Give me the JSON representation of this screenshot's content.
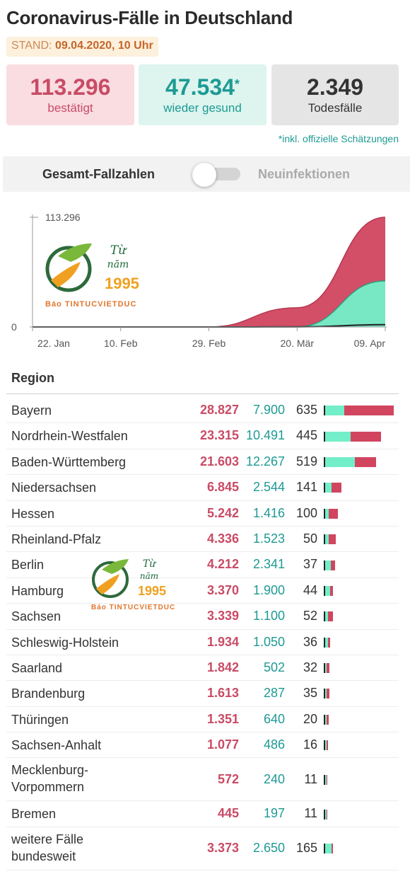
{
  "header": {
    "title": "Coronavirus-Fälle in Deutschland",
    "stand_label": "STAND:",
    "stand_value": "09.04.2020, 10 Uhr"
  },
  "stats": {
    "confirmed": {
      "value": "113.296",
      "label": "bestätigt"
    },
    "recovered": {
      "value": "47.534",
      "marker": "*",
      "label": "wieder gesund"
    },
    "deaths": {
      "value": "2.349",
      "label": "Todesfälle"
    },
    "footnote": "*inkl. offizielle Schätzungen"
  },
  "toggle": {
    "left_label": "Gesamt-Fallzahlen",
    "right_label": "Neuinfektionen",
    "state": "left"
  },
  "watermark": {
    "line1": "Từ",
    "line2": "năm",
    "year": "1995",
    "text": "Báo TINTUCVIETDUC"
  },
  "chart_data": [
    {
      "type": "area",
      "x": [
        "22. Jan",
        "10. Feb",
        "29. Feb",
        "20. Mär",
        "09. Apr"
      ],
      "y_tick_labels": [
        "0",
        "113.296"
      ],
      "ylim": [
        0,
        113296
      ],
      "series": [
        {
          "values": [
            0,
            16,
            79,
            19848,
            113296
          ],
          "color": "#d1455f"
        },
        {
          "values": [
            0,
            0,
            16,
            180,
            47534
          ],
          "color": "#72efc9"
        },
        {
          "values": [
            0,
            0,
            0,
            68,
            2349
          ],
          "color": "#222222"
        }
      ],
      "grid": false,
      "legend": "none"
    },
    {
      "type": "table",
      "columns": [
        "Region",
        "",
        "",
        "",
        ""
      ],
      "colors": {
        "confirmed": "#d1455f",
        "recovered": "#72efc9",
        "deaths": "#222222"
      },
      "max_confirmed": 28827,
      "rows": [
        {
          "region": "Bayern",
          "confirmed": "28.827",
          "recovered": "7.900",
          "deaths": "635",
          "c": 28827,
          "r": 7900,
          "d": 635
        },
        {
          "region": "Nordrhein-Westfalen",
          "confirmed": "23.315",
          "recovered": "10.491",
          "deaths": "445",
          "c": 23315,
          "r": 10491,
          "d": 445
        },
        {
          "region": "Baden-Württemberg",
          "confirmed": "21.603",
          "recovered": "12.267",
          "deaths": "519",
          "c": 21603,
          "r": 12267,
          "d": 519
        },
        {
          "region": "Niedersachsen",
          "confirmed": "6.845",
          "recovered": "2.544",
          "deaths": "141",
          "c": 6845,
          "r": 2544,
          "d": 141
        },
        {
          "region": "Hessen",
          "confirmed": "5.242",
          "recovered": "1.416",
          "deaths": "100",
          "c": 5242,
          "r": 1416,
          "d": 100
        },
        {
          "region": "Rheinland-Pfalz",
          "confirmed": "4.336",
          "recovered": "1.523",
          "deaths": "50",
          "c": 4336,
          "r": 1523,
          "d": 50
        },
        {
          "region": "Berlin",
          "confirmed": "4.212",
          "recovered": "2.341",
          "deaths": "37",
          "c": 4212,
          "r": 2341,
          "d": 37
        },
        {
          "region": "Hamburg",
          "confirmed": "3.370",
          "recovered": "1.900",
          "deaths": "44",
          "c": 3370,
          "r": 1900,
          "d": 44
        },
        {
          "region": "Sachsen",
          "confirmed": "3.339",
          "recovered": "1.100",
          "deaths": "52",
          "c": 3339,
          "r": 1100,
          "d": 52
        },
        {
          "region": "Schleswig-Holstein",
          "confirmed": "1.934",
          "recovered": "1.050",
          "deaths": "36",
          "c": 1934,
          "r": 1050,
          "d": 36
        },
        {
          "region": "Saarland",
          "confirmed": "1.842",
          "recovered": "502",
          "deaths": "32",
          "c": 1842,
          "r": 502,
          "d": 32
        },
        {
          "region": "Brandenburg",
          "confirmed": "1.613",
          "recovered": "287",
          "deaths": "35",
          "c": 1613,
          "r": 287,
          "d": 35
        },
        {
          "region": "Thüringen",
          "confirmed": "1.351",
          "recovered": "640",
          "deaths": "20",
          "c": 1351,
          "r": 640,
          "d": 20
        },
        {
          "region": "Sachsen-Anhalt",
          "confirmed": "1.077",
          "recovered": "486",
          "deaths": "16",
          "c": 1077,
          "r": 486,
          "d": 16
        },
        {
          "region": "Mecklenburg-Vorpommern",
          "confirmed": "572",
          "recovered": "240",
          "deaths": "11",
          "c": 572,
          "r": 240,
          "d": 11
        },
        {
          "region": "Bremen",
          "confirmed": "445",
          "recovered": "197",
          "deaths": "11",
          "c": 445,
          "r": 197,
          "d": 11
        },
        {
          "region": "weitere Fälle bundesweit",
          "confirmed": "3.373",
          "recovered": "2.650",
          "deaths": "165",
          "c": 3373,
          "r": 2650,
          "d": 165
        }
      ]
    }
  ]
}
